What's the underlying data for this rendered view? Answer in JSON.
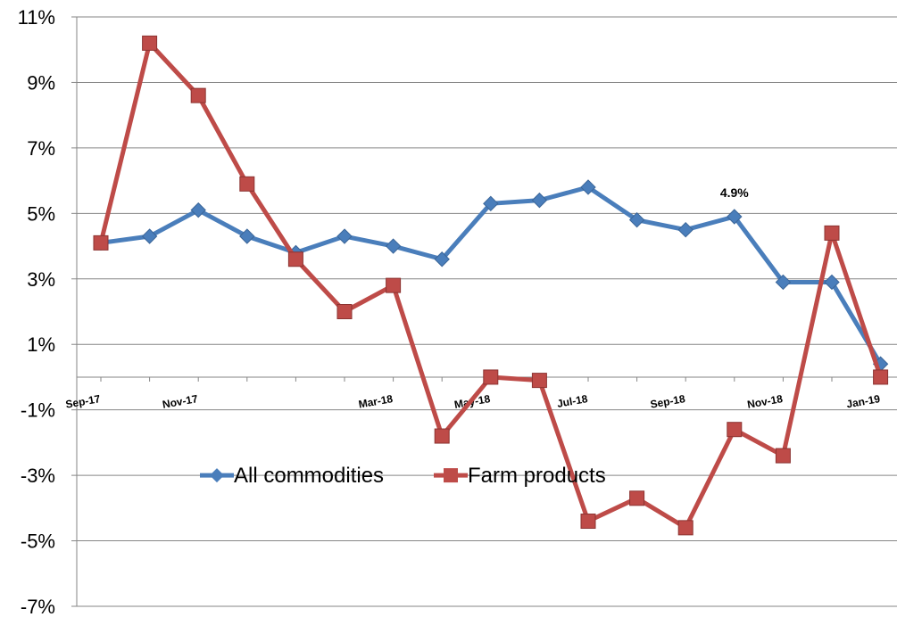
{
  "chart_data": {
    "type": "line",
    "title": "",
    "xlabel": "",
    "ylabel": "",
    "ylim": [
      -7,
      11
    ],
    "yticks": [
      11,
      9,
      7,
      5,
      3,
      1,
      -1,
      -3,
      -5,
      -7
    ],
    "ytick_labels": [
      "11%",
      "9%",
      "7%",
      "5%",
      "3%",
      "1%",
      "-1%",
      "-3%",
      "-5%",
      "-7%"
    ],
    "x": [
      "Sep-17",
      "Oct-17",
      "Nov-17",
      "Dec-17",
      "Jan-18",
      "Feb-18",
      "Mar-18",
      "Apr-18",
      "May-18",
      "Jun-18",
      "Jul-18",
      "Aug-18",
      "Sep-18",
      "Oct-18",
      "Nov-18",
      "Dec-18",
      "Jan-19"
    ],
    "x_labels_shown": [
      "Sep-17",
      "",
      "Nov-17",
      "",
      "",
      "",
      "Mar-18",
      "",
      "May-18",
      "",
      "Jul-18",
      "",
      "Sep-18",
      "",
      "Nov-18",
      "",
      "Jan-19"
    ],
    "series": [
      {
        "name": "All commodities",
        "color": "#4a7ebb",
        "marker": "diamond",
        "values": [
          4.1,
          4.3,
          5.1,
          4.3,
          3.8,
          4.3,
          4.0,
          3.6,
          5.3,
          5.4,
          5.8,
          4.8,
          4.5,
          4.9,
          2.9,
          2.9,
          0.4
        ]
      },
      {
        "name": "Farm products",
        "color": "#be4b48",
        "marker": "square",
        "values": [
          4.1,
          10.2,
          8.6,
          5.9,
          3.6,
          2.0,
          2.8,
          -1.8,
          0.0,
          -0.1,
          -4.4,
          -3.7,
          -4.6,
          -1.6,
          -2.4,
          4.4,
          0.0
        ]
      }
    ],
    "annotations": [
      {
        "text": "4.9%",
        "series": "All commodities",
        "x": "Oct-18",
        "y": 4.9
      }
    ],
    "grid": true,
    "legend": {
      "position": "center",
      "entries": [
        "All commodities",
        "Farm products"
      ]
    }
  }
}
